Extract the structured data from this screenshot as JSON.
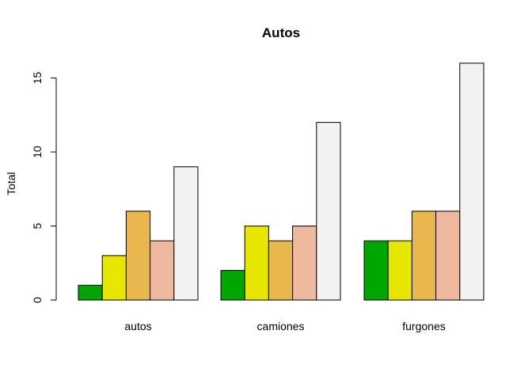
{
  "chart_data": {
    "type": "bar",
    "layout": "grouped",
    "title": "Autos",
    "xlabel": "",
    "ylabel": "Total",
    "categories": [
      "autos",
      "camiones",
      "furgones"
    ],
    "ylim": [
      0,
      17
    ],
    "yticks": [
      0,
      5,
      10,
      15
    ],
    "grid": false,
    "legend": "none",
    "series": [
      {
        "color": "#00A600",
        "values": [
          1,
          2,
          4
        ]
      },
      {
        "color": "#E6E600",
        "values": [
          3,
          5,
          4
        ]
      },
      {
        "color": "#E8B84F",
        "values": [
          6,
          4,
          6
        ]
      },
      {
        "color": "#EFB9A0",
        "values": [
          4,
          5,
          6
        ]
      },
      {
        "color": "#F2F2F2",
        "values": [
          9,
          12,
          16
        ]
      }
    ]
  }
}
